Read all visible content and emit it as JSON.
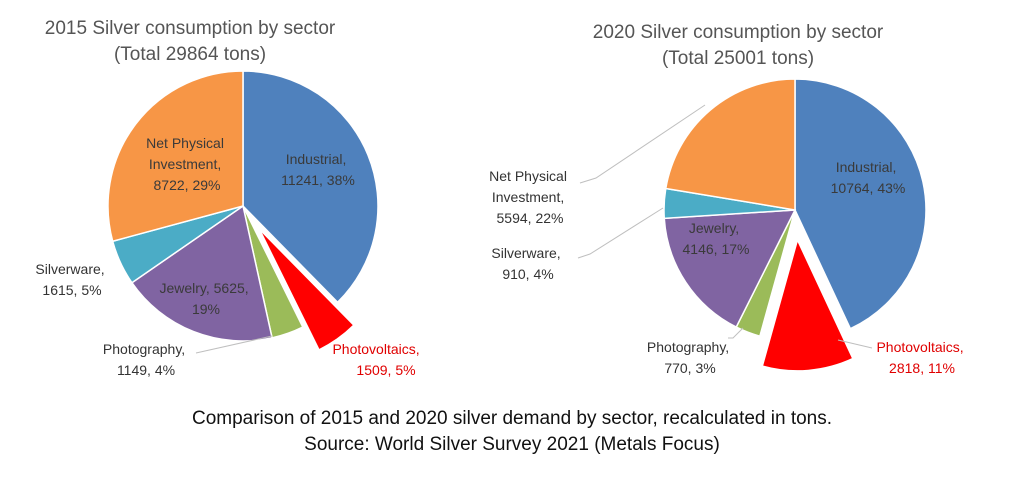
{
  "chart_data": [
    {
      "type": "pie",
      "title": "2015 Silver consumption by sector",
      "subtitle": "(Total 29864 tons)",
      "categories": [
        "Industrial",
        "Photovoltaics",
        "Photography",
        "Jewelry",
        "Silverware",
        "Net Physical Investment"
      ],
      "values": [
        11241,
        1509,
        1149,
        5625,
        1615,
        8722
      ],
      "percents": [
        38,
        5,
        4,
        19,
        5,
        29
      ],
      "colors": [
        "#4f81bd",
        "#ff0000",
        "#9bbb59",
        "#8064a2",
        "#4bacc6",
        "#f79646"
      ],
      "labels": [
        {
          "name": "Industrial,",
          "value": "11241, 38%",
          "color": "#3a3a3a"
        },
        {
          "name": "Photovoltaics,",
          "value": "1509, 5%",
          "color": "#e00000"
        },
        {
          "name": "Photography,",
          "value": "1149, 4%",
          "color": "#333333"
        },
        {
          "name": "Jewelry, 5625,",
          "value": "19%",
          "color": "#3a3a3a"
        },
        {
          "name": "Silverware,",
          "value": "1615, 5%",
          "color": "#333333"
        },
        {
          "lines": [
            "Net Physical",
            "Investment,",
            "8722, 29%"
          ],
          "color": "#3a3a3a"
        }
      ],
      "exploded": [
        "Photovoltaics"
      ]
    },
    {
      "type": "pie",
      "title": "2020 Silver consumption by sector",
      "subtitle": "(Total 25001 tons)",
      "categories": [
        "Industrial",
        "Photovoltaics",
        "Photography",
        "Jewelry",
        "Silverware",
        "Net Physical Investment"
      ],
      "values": [
        10764,
        2818,
        770,
        4146,
        910,
        5594
      ],
      "percents": [
        43,
        11,
        3,
        17,
        4,
        22
      ],
      "colors": [
        "#4f81bd",
        "#ff0000",
        "#9bbb59",
        "#8064a2",
        "#4bacc6",
        "#f79646"
      ],
      "labels": [
        {
          "name": "Industrial,",
          "value": "10764, 43%",
          "color": "#3a3a3a"
        },
        {
          "name": "Photovoltaics,",
          "value": "2818, 11%",
          "color": "#e00000"
        },
        {
          "name": "Photography,",
          "value": "770, 3%",
          "color": "#333333"
        },
        {
          "name": "Jewelry,",
          "value": "4146, 17%",
          "color": "#3a3a3a"
        },
        {
          "name": "Silverware,",
          "value": "910, 4%",
          "color": "#333333"
        },
        {
          "lines": [
            "Net Physical",
            "Investment,",
            "5594, 22%"
          ],
          "color": "#333333"
        }
      ],
      "exploded": [
        "Photovoltaics"
      ]
    }
  ],
  "caption": {
    "line1": "Comparison of 2015 and 2020 silver demand by sector, recalculated in tons.",
    "line2": "Source: World Silver Survey 2021 (Metals Focus)"
  }
}
